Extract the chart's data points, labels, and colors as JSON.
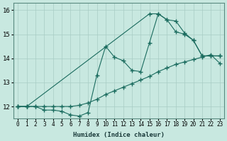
{
  "xlabel": "Humidex (Indice chaleur)",
  "xlim": [
    -0.5,
    23.5
  ],
  "ylim": [
    11.5,
    16.3
  ],
  "xticks": [
    0,
    1,
    2,
    3,
    4,
    5,
    6,
    7,
    8,
    9,
    10,
    11,
    12,
    13,
    14,
    15,
    16,
    17,
    18,
    19,
    20,
    21,
    22,
    23
  ],
  "yticks": [
    12,
    13,
    14,
    15,
    16
  ],
  "bg_color": "#c8e8e0",
  "line_color": "#1a6b5e",
  "grid_color": "#a8ccc4",
  "line1_x": [
    0,
    1,
    2,
    3,
    4,
    5,
    6,
    7,
    8,
    9,
    10,
    11,
    12,
    13,
    14,
    15,
    16,
    17,
    18,
    19,
    20,
    21,
    22,
    23
  ],
  "line1_y": [
    12.0,
    12.0,
    12.0,
    11.85,
    11.85,
    11.8,
    11.65,
    11.6,
    11.75,
    13.3,
    14.5,
    14.05,
    13.9,
    13.5,
    13.45,
    14.65,
    15.85,
    15.6,
    15.55,
    15.05,
    14.75,
    14.1,
    14.1,
    14.1
  ],
  "line2_x": [
    0,
    1,
    2,
    3,
    4,
    5,
    6,
    7,
    8,
    9,
    10,
    11,
    12,
    13,
    14,
    15,
    16,
    17,
    18,
    19,
    20,
    21,
    22,
    23
  ],
  "line2_y": [
    12.0,
    12.0,
    12.0,
    12.0,
    12.0,
    12.0,
    12.0,
    12.05,
    12.15,
    12.3,
    12.5,
    12.65,
    12.8,
    12.95,
    13.1,
    13.25,
    13.45,
    13.6,
    13.75,
    13.85,
    13.95,
    14.05,
    14.15,
    13.8
  ],
  "line3_x": [
    0,
    1,
    15,
    16,
    17,
    18,
    19,
    20,
    21,
    22,
    23
  ],
  "line3_y": [
    12.0,
    12.0,
    15.85,
    15.85,
    15.6,
    15.1,
    15.0,
    14.75,
    14.1,
    14.1,
    14.1
  ]
}
